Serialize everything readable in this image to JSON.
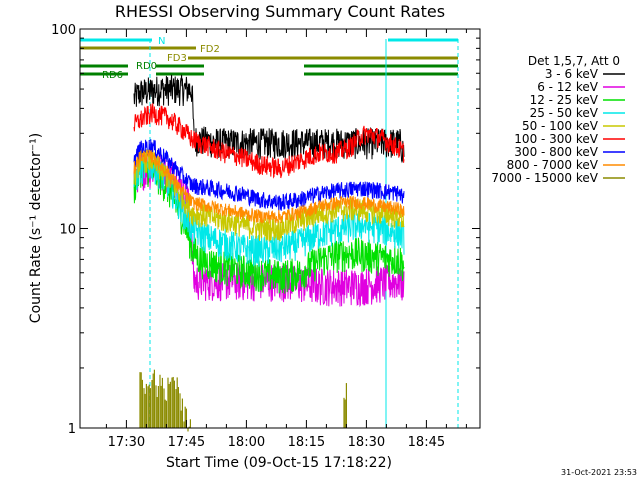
{
  "chart_data": {
    "type": "line",
    "title": "RHESSI Observing Summary Count Rates",
    "xlabel": "Start Time (09-Oct-15 17:18:22)",
    "ylabel": "Count Rate (s⁻¹ detector⁻¹)",
    "x_unit": "minutes after 17:18:22",
    "xlim": [
      0,
      100
    ],
    "ylim": [
      1,
      100
    ],
    "yscale": "log",
    "x_ticks": [
      {
        "label": "17:30",
        "value": 11.6
      },
      {
        "label": "17:45",
        "value": 26.6
      },
      {
        "label": "18:00",
        "value": 41.6
      },
      {
        "label": "18:15",
        "value": 56.6
      },
      {
        "label": "18:30",
        "value": 71.6
      },
      {
        "label": "18:45",
        "value": 86.6
      }
    ],
    "y_ticks": [
      {
        "label": "1",
        "value": 1
      },
      {
        "label": "10",
        "value": 10
      },
      {
        "label": "100",
        "value": 100
      }
    ],
    "legend": {
      "header": "Det 1,5,7, Att 0",
      "position": "right"
    },
    "series": [
      {
        "name": "3 - 6 keV",
        "color": "#000000",
        "noise": 0.18,
        "points": [
          [
            13.5,
            45
          ],
          [
            15,
            48
          ],
          [
            20,
            50
          ],
          [
            24,
            50
          ],
          [
            28,
            50
          ],
          [
            28.5,
            28
          ],
          [
            35,
            27
          ],
          [
            45,
            27
          ],
          [
            55,
            27
          ],
          [
            65,
            27
          ],
          [
            75,
            27
          ],
          [
            80,
            27
          ],
          [
            81,
            24
          ]
        ]
      },
      {
        "name": "6 - 12 keV",
        "color": "#e000e0",
        "noise": 0.22,
        "points": [
          [
            13.5,
            18
          ],
          [
            15,
            20
          ],
          [
            20,
            20
          ],
          [
            24,
            18
          ],
          [
            27,
            14
          ],
          [
            28,
            8
          ],
          [
            28.5,
            5.5
          ],
          [
            40,
            5.5
          ],
          [
            50,
            5.5
          ],
          [
            60,
            5.2
          ],
          [
            70,
            5.2
          ],
          [
            80,
            5.5
          ],
          [
            81,
            5.2
          ]
        ]
      },
      {
        "name": "12 - 25 keV",
        "color": "#00e000",
        "noise": 0.2,
        "points": [
          [
            13.5,
            16
          ],
          [
            15,
            20
          ],
          [
            18,
            20
          ],
          [
            22,
            16
          ],
          [
            26,
            11
          ],
          [
            28,
            8
          ],
          [
            30,
            7
          ],
          [
            35,
            6.5
          ],
          [
            40,
            6.2
          ],
          [
            45,
            6
          ],
          [
            50,
            5.8
          ],
          [
            55,
            6
          ],
          [
            60,
            7
          ],
          [
            65,
            7.5
          ],
          [
            70,
            7.5
          ],
          [
            75,
            7.2
          ],
          [
            80,
            7
          ],
          [
            81,
            6.5
          ]
        ]
      },
      {
        "name": "25 - 50 keV",
        "color": "#00e8e8",
        "noise": 0.18,
        "points": [
          [
            13.5,
            17
          ],
          [
            15,
            20
          ],
          [
            18,
            21
          ],
          [
            22,
            17
          ],
          [
            26,
            12
          ],
          [
            28,
            10
          ],
          [
            32,
            9
          ],
          [
            36,
            8.5
          ],
          [
            40,
            8
          ],
          [
            45,
            7.8
          ],
          [
            50,
            8
          ],
          [
            55,
            8.5
          ],
          [
            60,
            9.5
          ],
          [
            65,
            10
          ],
          [
            70,
            10.5
          ],
          [
            75,
            10
          ],
          [
            80,
            9.5
          ],
          [
            81,
            9
          ]
        ]
      },
      {
        "name": "50 - 100 keV",
        "color": "#c8c800",
        "noise": 0.14,
        "points": [
          [
            13.5,
            18
          ],
          [
            15,
            22
          ],
          [
            18,
            22
          ],
          [
            22,
            18
          ],
          [
            26,
            14
          ],
          [
            28,
            12
          ],
          [
            32,
            11.5
          ],
          [
            36,
            11
          ],
          [
            40,
            10.5
          ],
          [
            45,
            10
          ],
          [
            50,
            10
          ],
          [
            55,
            11
          ],
          [
            60,
            12
          ],
          [
            65,
            12.5
          ],
          [
            70,
            12.5
          ],
          [
            75,
            12
          ],
          [
            80,
            11.5
          ],
          [
            81,
            11
          ]
        ]
      },
      {
        "name": "100 - 300 keV",
        "color": "#ff0000",
        "noise": 0.12,
        "points": [
          [
            13.5,
            33
          ],
          [
            15,
            35
          ],
          [
            18,
            38
          ],
          [
            22,
            36
          ],
          [
            26,
            31
          ],
          [
            28,
            28
          ],
          [
            32,
            26
          ],
          [
            36,
            24
          ],
          [
            40,
            23
          ],
          [
            45,
            21
          ],
          [
            50,
            20
          ],
          [
            55,
            22
          ],
          [
            60,
            24
          ],
          [
            64,
            24
          ],
          [
            68,
            26
          ],
          [
            70,
            29
          ],
          [
            72,
            30
          ],
          [
            76,
            28
          ],
          [
            80,
            25
          ],
          [
            81,
            24
          ]
        ]
      },
      {
        "name": "300 - 800 keV",
        "color": "#0000ff",
        "noise": 0.1,
        "points": [
          [
            13.5,
            22
          ],
          [
            15,
            25
          ],
          [
            18,
            26
          ],
          [
            22,
            22
          ],
          [
            26,
            18
          ],
          [
            28,
            16.5
          ],
          [
            32,
            16
          ],
          [
            36,
            15.5
          ],
          [
            40,
            15
          ],
          [
            45,
            14
          ],
          [
            50,
            13.5
          ],
          [
            55,
            14
          ],
          [
            60,
            15
          ],
          [
            65,
            15.5
          ],
          [
            70,
            16
          ],
          [
            75,
            15.5
          ],
          [
            80,
            15
          ],
          [
            81,
            14
          ]
        ]
      },
      {
        "name": "800 - 7000 keV",
        "color": "#ff8c00",
        "noise": 0.08,
        "points": [
          [
            13.5,
            20
          ],
          [
            15,
            23
          ],
          [
            18,
            23
          ],
          [
            22,
            19
          ],
          [
            26,
            15
          ],
          [
            28,
            13.5
          ],
          [
            32,
            13
          ],
          [
            36,
            12.5
          ],
          [
            40,
            12
          ],
          [
            45,
            11.5
          ],
          [
            50,
            11.5
          ],
          [
            55,
            12
          ],
          [
            60,
            13
          ],
          [
            65,
            13.5
          ],
          [
            70,
            13.5
          ],
          [
            75,
            13
          ],
          [
            80,
            12.5
          ],
          [
            81,
            12
          ]
        ]
      },
      {
        "name": "7000 - 15000 keV",
        "color": "#8b8b00",
        "noise": 0,
        "points": [],
        "spikes": [
          [
            15,
            2
          ],
          [
            16,
            1.8
          ],
          [
            17,
            1.9
          ],
          [
            18,
            2
          ],
          [
            19,
            1.7
          ],
          [
            20,
            2
          ],
          [
            21,
            1.6
          ],
          [
            22,
            1.9
          ],
          [
            23,
            2
          ],
          [
            24,
            1.8
          ],
          [
            25,
            1.5
          ],
          [
            26,
            1.3
          ],
          [
            27,
            1.2
          ],
          [
            66,
            1.7
          ]
        ]
      }
    ],
    "observing_flags": [
      {
        "name": "N",
        "color": "#00e8e8",
        "segments": [
          [
            0,
            18
          ]
        ],
        "segments_right": [
          [
            77,
            94.5
          ]
        ]
      },
      {
        "name": "FD2",
        "color": "#8b8b00",
        "segments": [
          [
            0,
            29
          ]
        ]
      },
      {
        "name": "FD3",
        "color": "#8b8b00",
        "segments": [
          [
            27,
            94.5
          ]
        ]
      },
      {
        "name": "RD0",
        "color": "#008000",
        "segments": [
          [
            0,
            12
          ],
          [
            19,
            31
          ],
          [
            56,
            70
          ],
          [
            70,
            94.5
          ]
        ]
      },
      {
        "name": "RD6",
        "color": "#008000",
        "segments": [
          [
            0,
            12
          ],
          [
            19,
            31
          ],
          [
            56,
            70
          ],
          [
            70,
            94.5
          ]
        ]
      }
    ],
    "vertical_markers": [
      {
        "name": "saa-start",
        "value": 17.5,
        "style": "dashed",
        "color": "#00e8e8"
      },
      {
        "name": "saa-end",
        "value": 94.5,
        "style": "dashed",
        "color": "#00e8e8"
      },
      {
        "name": "night-start",
        "value": 76.5,
        "style": "solid",
        "color": "#00e8e8"
      }
    ],
    "data_end": 81
  },
  "footer": {
    "timestamp": "31-Oct-2021 23:53"
  }
}
